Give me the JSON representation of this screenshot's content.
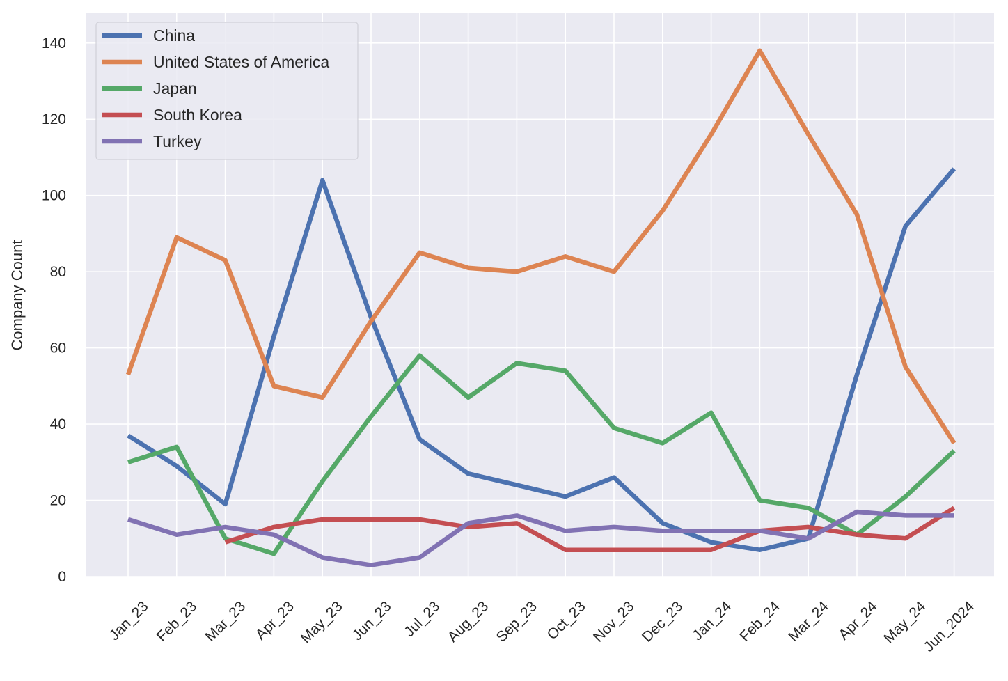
{
  "chart_data": {
    "type": "line",
    "title": "",
    "xlabel": "",
    "ylabel": "Company Count",
    "ylim": [
      0,
      148
    ],
    "yticks": [
      0,
      20,
      40,
      60,
      80,
      100,
      120,
      140
    ],
    "grid": true,
    "legend_position": "top-left",
    "categories": [
      "Jan_23",
      "Feb_23",
      "Mar_23",
      "Apr_23",
      "May_23",
      "Jun_23",
      "Jul_23",
      "Aug_23",
      "Sep_23",
      "Oct_23",
      "Nov_23",
      "Dec_23",
      "Jan_24",
      "Feb_24",
      "Mar_24",
      "Apr_24",
      "May_24",
      "Jun_2024"
    ],
    "series": [
      {
        "name": "China",
        "color": "#4c72b0",
        "values": [
          37,
          29,
          19,
          63,
          104,
          68,
          36,
          27,
          24,
          21,
          26,
          14,
          9,
          7,
          10,
          53,
          92,
          107
        ]
      },
      {
        "name": "United States of America",
        "color": "#dd8452",
        "values": [
          53,
          89,
          83,
          50,
          47,
          67,
          85,
          81,
          80,
          84,
          80,
          96,
          116,
          138,
          116,
          95,
          55,
          35
        ]
      },
      {
        "name": "Japan",
        "color": "#55a868",
        "values": [
          30,
          34,
          10,
          6,
          25,
          42,
          58,
          47,
          56,
          54,
          39,
          35,
          43,
          20,
          18,
          11,
          21,
          33
        ]
      },
      {
        "name": "South Korea",
        "color": "#c44e52",
        "values": [
          null,
          null,
          9,
          13,
          15,
          15,
          15,
          13,
          14,
          7,
          7,
          7,
          7,
          12,
          13,
          11,
          10,
          18
        ]
      },
      {
        "name": "Turkey",
        "color": "#8172b3",
        "values": [
          15,
          11,
          13,
          11,
          5,
          3,
          5,
          14,
          16,
          12,
          13,
          12,
          12,
          12,
          10,
          17,
          16,
          16
        ]
      }
    ]
  }
}
